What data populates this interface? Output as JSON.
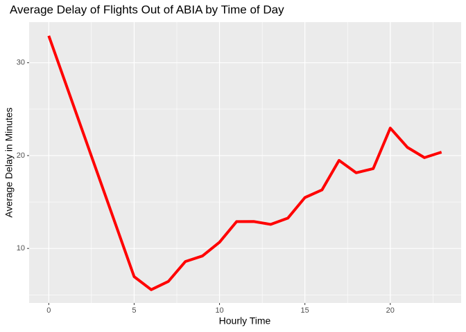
{
  "chart_data": {
    "type": "line",
    "title": "Average Delay of Flights Out of ABIA by Time of Day",
    "x_label": "Hourly Time",
    "y_label": "Average Delay in Minutes",
    "x": [
      0,
      5,
      6,
      7,
      8,
      9,
      10,
      11,
      12,
      13,
      14,
      15,
      16,
      17,
      18,
      19,
      20,
      21,
      22,
      23
    ],
    "series": [
      {
        "name": "Average Delay",
        "color": "#ff0000",
        "values": [
          32.9,
          6.96,
          5.56,
          6.44,
          8.59,
          9.19,
          10.67,
          12.89,
          12.9,
          12.59,
          13.26,
          15.48,
          16.3,
          19.48,
          18.15,
          18.59,
          22.96,
          20.89,
          19.78,
          20.37
        ]
      }
    ],
    "xlim": [
      -1.15,
      24.15
    ],
    "xticks": [
      0,
      5,
      10,
      15,
      20
    ],
    "ylim": [
      4.13,
      34.37
    ],
    "yticks": [
      10,
      20,
      30
    ],
    "x_minor_grid": [
      2.5,
      7.5,
      12.5,
      17.5,
      22.5
    ],
    "y_minor_grid": [
      5,
      15,
      25
    ],
    "grid": true
  }
}
